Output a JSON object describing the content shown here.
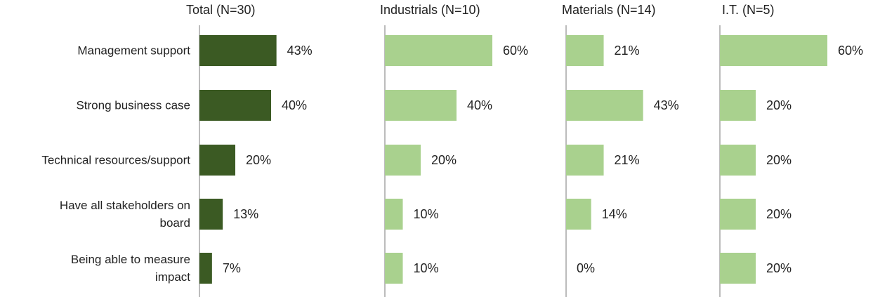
{
  "chart_data": [
    {
      "type": "hbar",
      "title": "Total (N=30)",
      "color": "#3b5a23",
      "categories": [
        "Management support",
        "Strong business case",
        "Technical resources/support",
        "Have all stakeholders on\nboard",
        "Being able to measure\nimpact"
      ],
      "values": [
        43,
        40,
        20,
        13,
        7
      ],
      "value_labels": [
        "43%",
        "40%",
        "20%",
        "13%",
        "7%"
      ]
    },
    {
      "type": "hbar",
      "title": "Industrials (N=10)",
      "color": "#a9d18e",
      "values": [
        60,
        40,
        20,
        10,
        10
      ],
      "value_labels": [
        "60%",
        "40%",
        "20%",
        "10%",
        "10%"
      ]
    },
    {
      "type": "hbar",
      "title": "Materials (N=14)",
      "color": "#a9d18e",
      "values": [
        21,
        43,
        21,
        14,
        0
      ],
      "value_labels": [
        "21%",
        "43%",
        "21%",
        "14%",
        "0%"
      ]
    },
    {
      "type": "hbar",
      "title": "I.T. (N=5)",
      "color": "#a9d18e",
      "values": [
        60,
        20,
        20,
        20,
        20
      ],
      "value_labels": [
        "60%",
        "20%",
        "20%",
        "20%",
        "20%"
      ]
    }
  ]
}
